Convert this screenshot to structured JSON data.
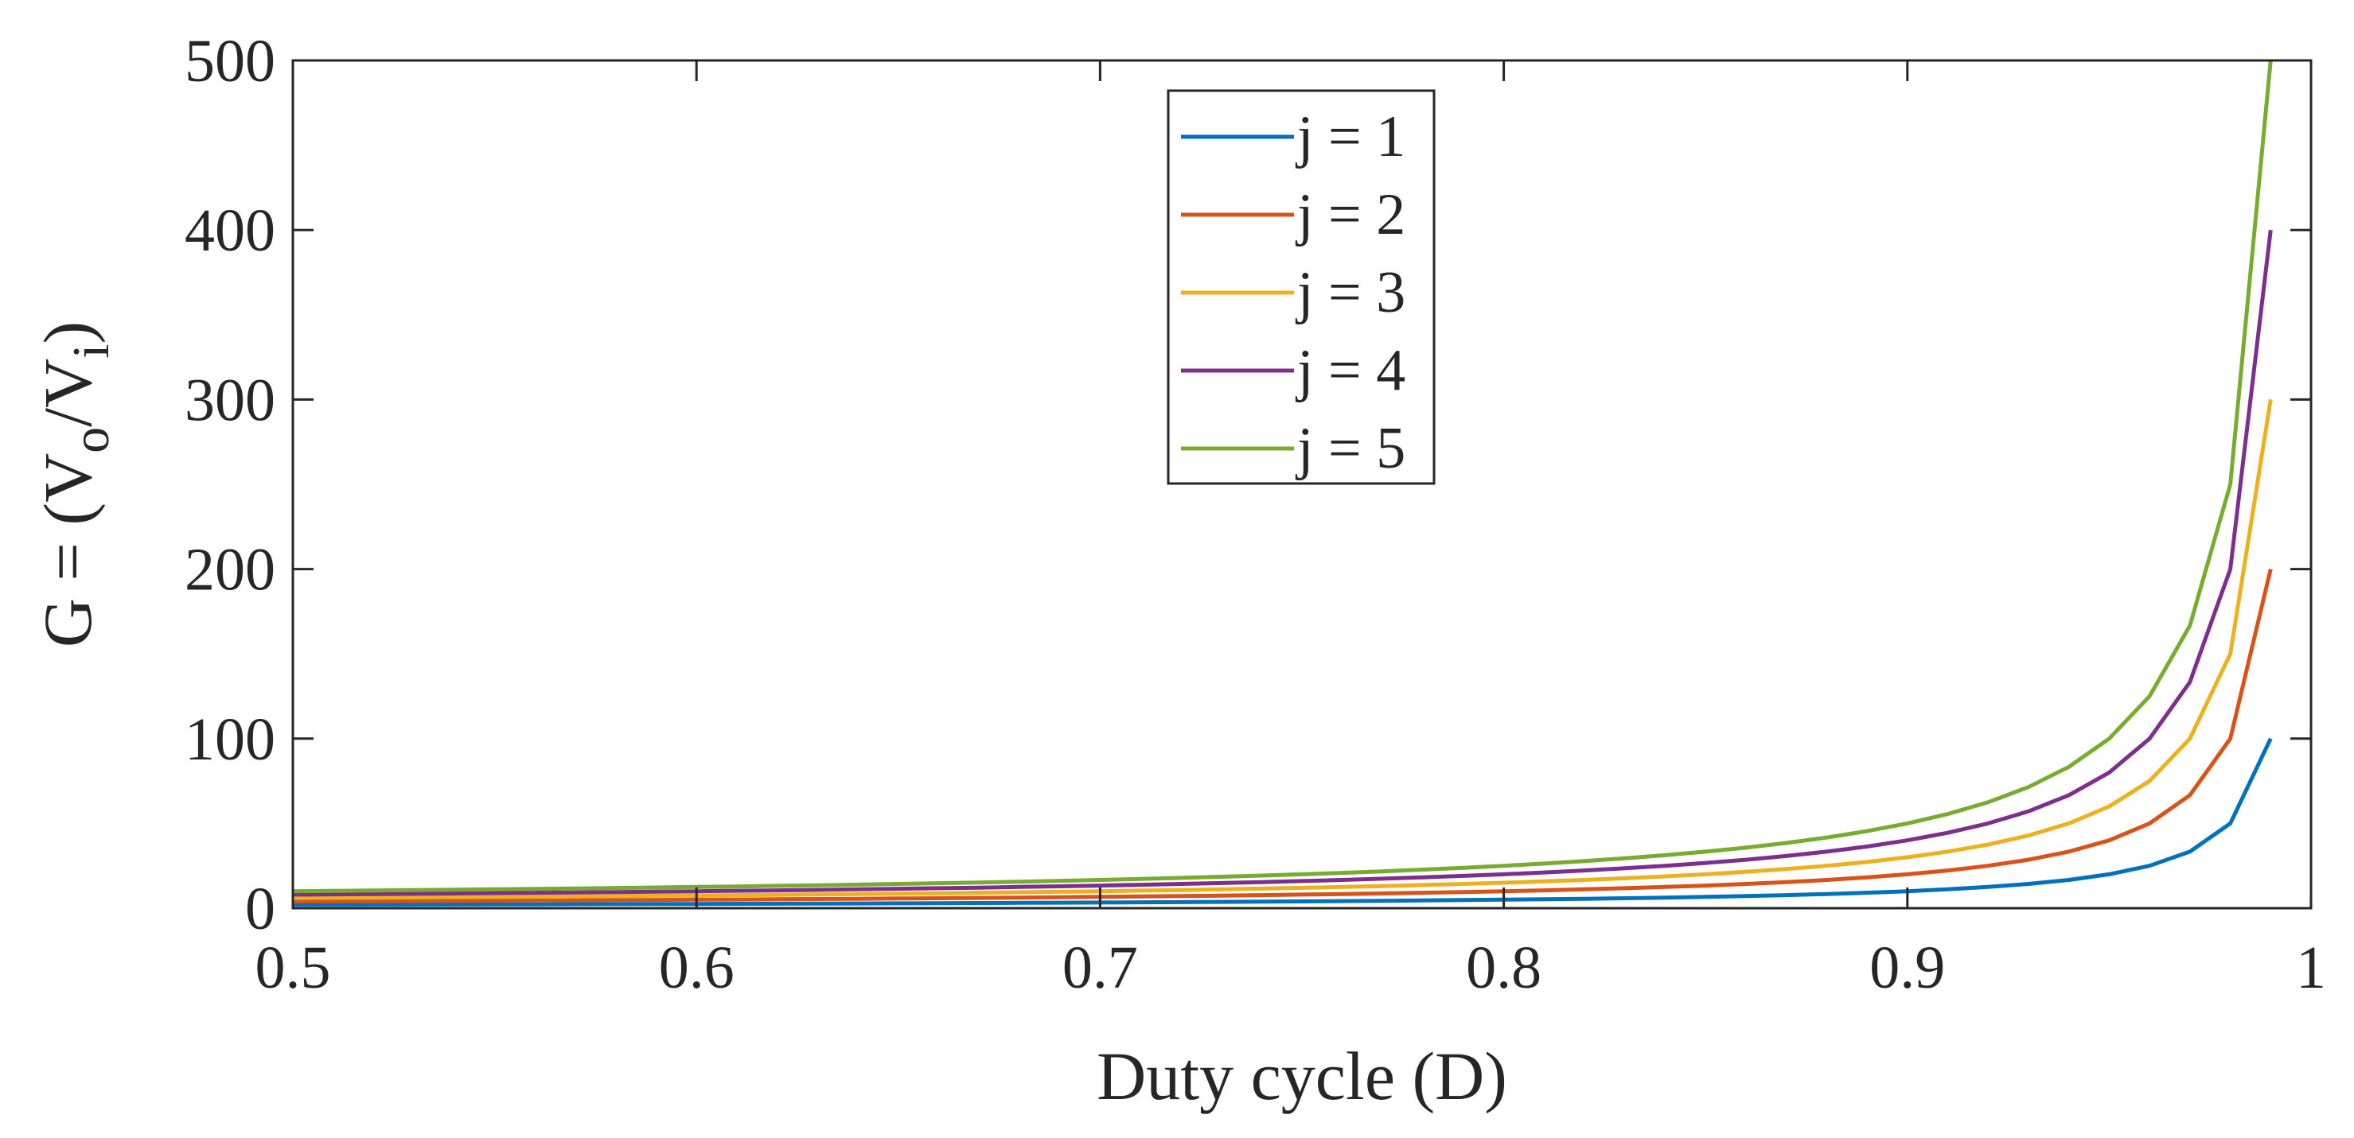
{
  "chart_data": {
    "type": "line",
    "title": "",
    "xlabel": "Duty cycle (D)",
    "ylabel": {
      "prefix": "G = (V",
      "sub1": "o",
      "mid": "/V",
      "sub2": "i",
      "suffix": ")"
    },
    "xlim": [
      0.5,
      1
    ],
    "ylim": [
      0,
      500
    ],
    "xticks": [
      0.5,
      0.6,
      0.7,
      0.8,
      0.9,
      1
    ],
    "xtick_labels": [
      "0.5",
      "0.6",
      "0.7",
      "0.8",
      "0.9",
      "1"
    ],
    "yticks": [
      0,
      100,
      200,
      300,
      400,
      500
    ],
    "ytick_labels": [
      "0",
      "100",
      "200",
      "300",
      "400",
      "500"
    ],
    "grid": false,
    "legend_position": "top-center",
    "formula": "G = j / (1 - D)",
    "x": [
      0.5,
      0.51,
      0.52,
      0.53,
      0.54,
      0.55,
      0.56,
      0.57,
      0.58,
      0.59,
      0.6,
      0.61,
      0.62,
      0.63,
      0.64,
      0.65,
      0.66,
      0.67,
      0.68,
      0.69,
      0.7,
      0.71,
      0.72,
      0.73,
      0.74,
      0.75,
      0.76,
      0.77,
      0.78,
      0.79,
      0.8,
      0.81,
      0.82,
      0.83,
      0.84,
      0.85,
      0.86,
      0.87,
      0.88,
      0.89,
      0.9,
      0.91,
      0.92,
      0.93,
      0.94,
      0.95,
      0.96,
      0.97,
      0.98,
      0.99
    ],
    "series": [
      {
        "name": "j = 1",
        "j": 1,
        "color": "#0072BD"
      },
      {
        "name": "j = 2",
        "j": 2,
        "color": "#D95319"
      },
      {
        "name": "j = 3",
        "j": 3,
        "color": "#EDB120"
      },
      {
        "name": "j = 4",
        "j": 4,
        "color": "#7E2F8E"
      },
      {
        "name": "j = 5",
        "j": 5,
        "color": "#77AC30"
      }
    ]
  }
}
